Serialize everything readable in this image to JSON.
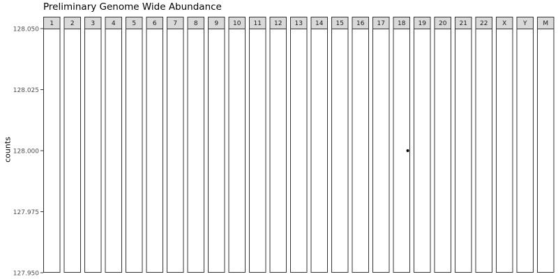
{
  "chart_data": {
    "type": "scatter",
    "title": "Preliminary Genome Wide Abundance",
    "xlabel": "",
    "ylabel": "counts",
    "facets": [
      "1",
      "2",
      "3",
      "4",
      "5",
      "6",
      "7",
      "8",
      "9",
      "10",
      "11",
      "12",
      "13",
      "14",
      "15",
      "16",
      "17",
      "18",
      "19",
      "20",
      "21",
      "22",
      "X",
      "Y",
      "M"
    ],
    "ylim": [
      127.95,
      128.05
    ],
    "yticks": [
      "127.950",
      "127.975",
      "128.000",
      "128.025",
      "128.050"
    ],
    "ytick_values": [
      127.95,
      127.975,
      128.0,
      128.025,
      128.05
    ],
    "points": [
      {
        "facet": "18",
        "y": 128.0
      }
    ],
    "grid": false,
    "colors": {
      "strip_fill": "#d9d9d9",
      "panel_border": "#333333",
      "point": "#000000"
    }
  }
}
